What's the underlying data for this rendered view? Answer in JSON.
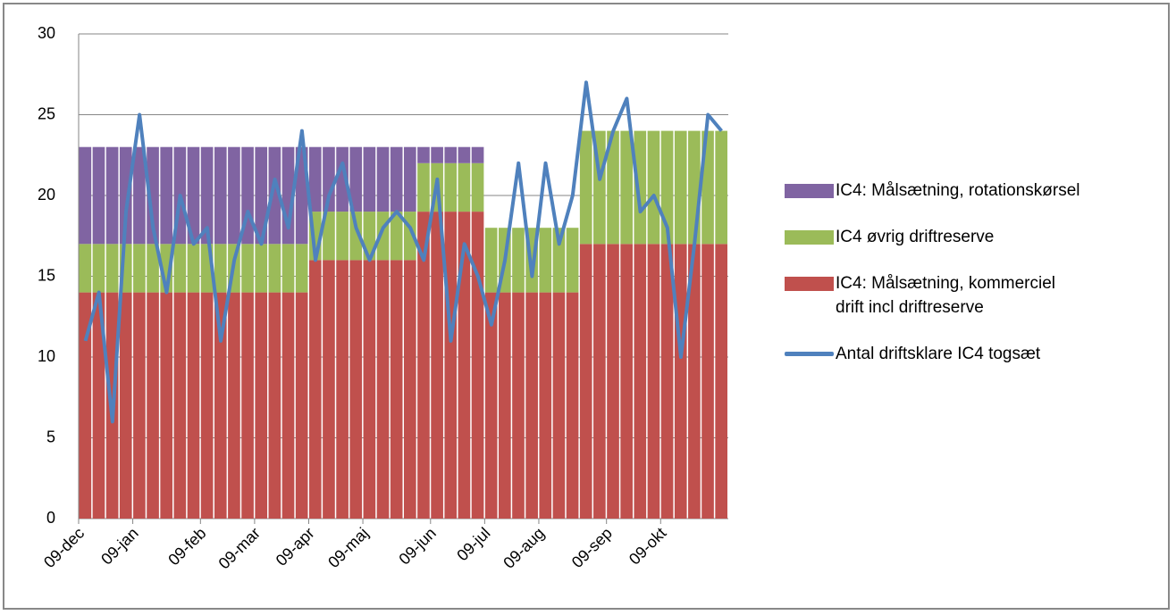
{
  "chart_data": {
    "type": "stacked-bar-line",
    "categories": [
      "09-dec",
      null,
      null,
      null,
      "09-jan",
      null,
      null,
      null,
      null,
      "09-feb",
      null,
      null,
      null,
      "09-mar",
      null,
      null,
      null,
      "09-apr",
      null,
      null,
      null,
      "09-maj",
      null,
      null,
      null,
      null,
      "09-jun",
      null,
      null,
      null,
      "09-jul",
      null,
      null,
      null,
      "09-aug",
      null,
      null,
      null,
      null,
      "09-sep",
      null,
      null,
      null,
      "09-okt",
      null,
      null,
      null,
      null
    ],
    "series": [
      {
        "name": "IC4: Målsætning, kommerciel drift  incl driftreserve",
        "color": "#c0504d",
        "kind": "bar",
        "values": [
          14,
          14,
          14,
          14,
          14,
          14,
          14,
          14,
          14,
          14,
          14,
          14,
          14,
          14,
          14,
          14,
          14,
          16,
          16,
          16,
          16,
          16,
          16,
          16,
          16,
          19,
          19,
          19,
          19,
          19,
          14,
          14,
          14,
          14,
          14,
          14,
          14,
          17,
          17,
          17,
          17,
          17,
          17,
          17,
          17,
          17,
          17,
          17
        ]
      },
      {
        "name": "IC4 øvrig driftreserve",
        "color": "#9bbb59",
        "kind": "bar",
        "values": [
          3,
          3,
          3,
          3,
          3,
          3,
          3,
          3,
          3,
          3,
          3,
          3,
          3,
          3,
          3,
          3,
          3,
          3,
          3,
          3,
          3,
          3,
          3,
          3,
          3,
          3,
          3,
          3,
          3,
          3,
          4,
          4,
          4,
          4,
          4,
          4,
          4,
          7,
          7,
          7,
          7,
          7,
          7,
          7,
          7,
          7,
          7,
          7
        ]
      },
      {
        "name": "IC4: Målsætning, rotationskørsel",
        "color": "#8064a2",
        "kind": "bar",
        "values": [
          6,
          6,
          6,
          6,
          6,
          6,
          6,
          6,
          6,
          6,
          6,
          6,
          6,
          6,
          6,
          6,
          6,
          4,
          4,
          4,
          4,
          4,
          4,
          4,
          4,
          1,
          1,
          1,
          1,
          1,
          0,
          0,
          0,
          0,
          0,
          0,
          0,
          0,
          0,
          0,
          0,
          0,
          0,
          0,
          0,
          0,
          0,
          0
        ]
      },
      {
        "name": "Antal driftsklare IC4 togsæt",
        "color": "#4f81bd",
        "kind": "line",
        "values": [
          11,
          14,
          6,
          19,
          25,
          18,
          14,
          20,
          17,
          18,
          11,
          16,
          19,
          17,
          21,
          18,
          24,
          16,
          20,
          22,
          18,
          16,
          18,
          19,
          18,
          16,
          21,
          11,
          17,
          15,
          12,
          16,
          22,
          15,
          22,
          17,
          20,
          27,
          21,
          24,
          26,
          19,
          20,
          18,
          10,
          17,
          25,
          24
        ]
      }
    ],
    "ylim": [
      0,
      30
    ],
    "yticks": [
      0,
      5,
      10,
      15,
      20,
      25,
      30
    ],
    "grid": true
  }
}
